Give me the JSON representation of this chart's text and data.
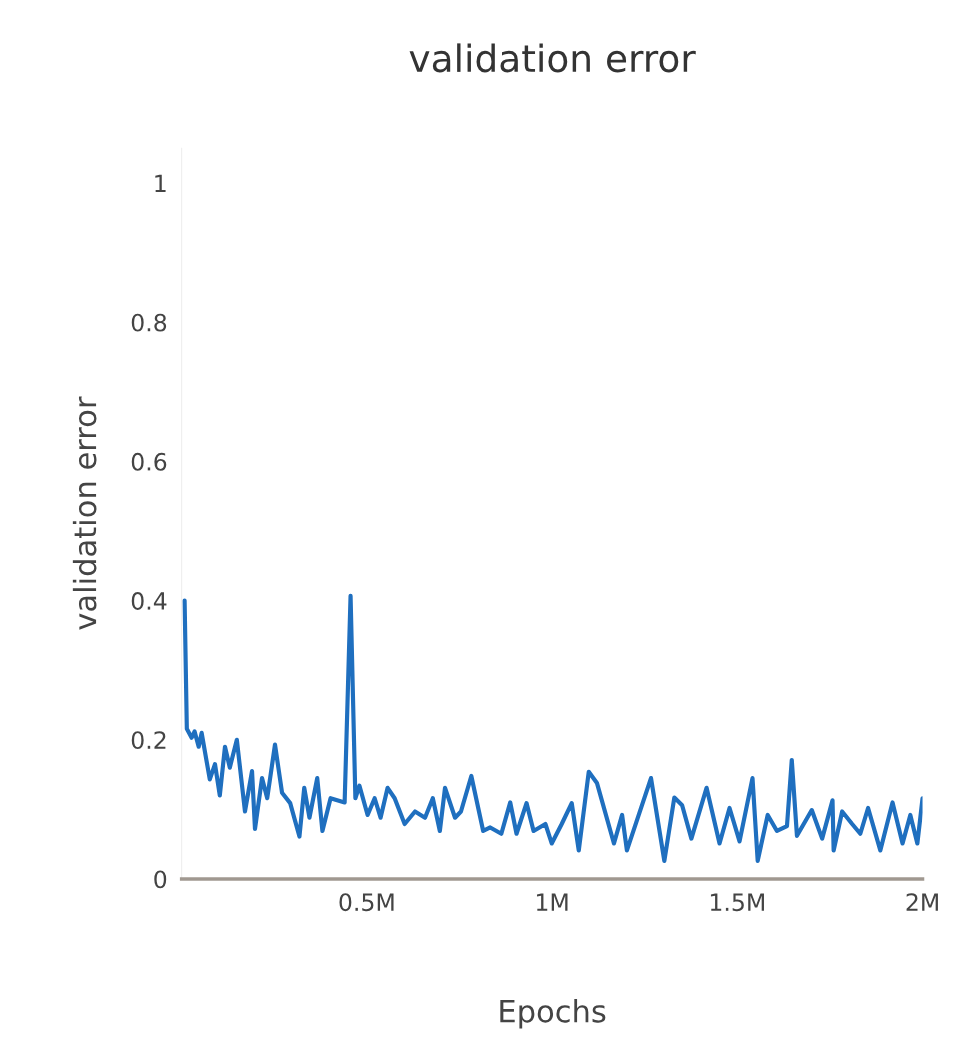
{
  "chart_data": {
    "type": "line",
    "title": "validation error",
    "xlabel": "Epochs",
    "ylabel": "validation error",
    "x": [
      8000,
      14000,
      27000,
      35000,
      46000,
      54000,
      76000,
      90000,
      103000,
      117000,
      130000,
      149000,
      171000,
      190000,
      198000,
      217000,
      231000,
      252000,
      271000,
      293000,
      318000,
      331000,
      345000,
      366000,
      380000,
      402000,
      440000,
      456000,
      469000,
      480000,
      502000,
      521000,
      537000,
      556000,
      575000,
      602000,
      630000,
      657000,
      678000,
      697000,
      711000,
      738000,
      754000,
      782000,
      814000,
      833000,
      863000,
      887000,
      904000,
      931000,
      950000,
      982000,
      999000,
      1026000,
      1053000,
      1072000,
      1099000,
      1121000,
      1167000,
      1189000,
      1202000,
      1267000,
      1303000,
      1330000,
      1351000,
      1376000,
      1417000,
      1452000,
      1479000,
      1506000,
      1541000,
      1555000,
      1582000,
      1607000,
      1634000,
      1647000,
      1661000,
      1701000,
      1729000,
      1757000,
      1760000,
      1783000,
      1810000,
      1832000,
      1853000,
      1886000,
      1919000,
      1946000,
      1967000,
      1986000,
      2000000
    ],
    "series": [
      {
        "color": "#1f6fbf",
        "values": [
          0.4,
          0.216,
          0.203,
          0.212,
          0.19,
          0.21,
          0.143,
          0.165,
          0.12,
          0.19,
          0.16,
          0.2,
          0.097,
          0.155,
          0.072,
          0.145,
          0.116,
          0.193,
          0.124,
          0.109,
          0.061,
          0.131,
          0.088,
          0.145,
          0.069,
          0.116,
          0.11,
          0.407,
          0.116,
          0.134,
          0.092,
          0.116,
          0.088,
          0.131,
          0.116,
          0.079,
          0.097,
          0.088,
          0.116,
          0.069,
          0.131,
          0.088,
          0.097,
          0.148,
          0.069,
          0.074,
          0.065,
          0.11,
          0.065,
          0.109,
          0.069,
          0.079,
          0.051,
          0.079,
          0.109,
          0.041,
          0.154,
          0.138,
          0.051,
          0.092,
          0.041,
          0.145,
          0.026,
          0.117,
          0.106,
          0.058,
          0.131,
          0.051,
          0.102,
          0.054,
          0.145,
          0.026,
          0.092,
          0.069,
          0.076,
          0.171,
          0.062,
          0.099,
          0.058,
          0.113,
          0.041,
          0.097,
          0.079,
          0.065,
          0.102,
          0.041,
          0.11,
          0.051,
          0.092,
          0.051,
          0.116
        ]
      }
    ],
    "xlim": [
      0,
      2000000
    ],
    "ylim": [
      0,
      1.05
    ],
    "xticks": [
      {
        "value": 500000,
        "label": "0.5M"
      },
      {
        "value": 1000000,
        "label": "1M"
      },
      {
        "value": 1500000,
        "label": "1.5M"
      },
      {
        "value": 2000000,
        "label": "2M"
      }
    ],
    "yticks": [
      0,
      0.2,
      0.4,
      0.6,
      0.8,
      1
    ],
    "grid": false,
    "legend": false
  }
}
